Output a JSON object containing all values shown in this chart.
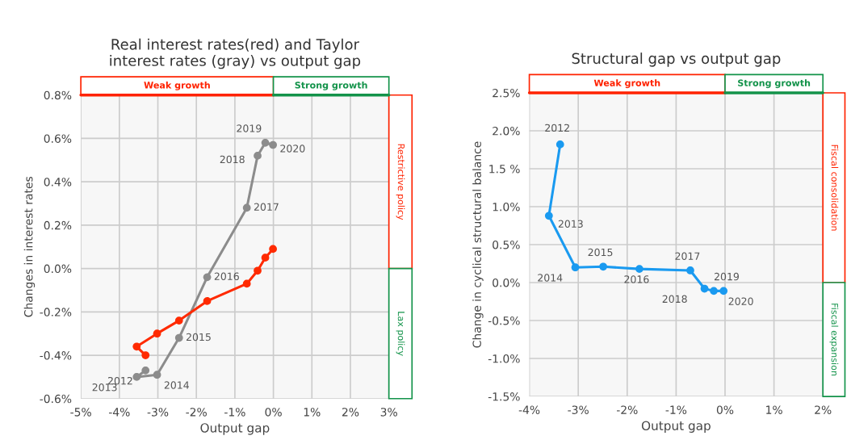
{
  "chart_data": [
    {
      "type": "line",
      "title": "Real interest rates(red) and Taylor interest rates (gray) vs output gap",
      "xlabel": "Output gap",
      "ylabel": "Changes in interest rates",
      "xlim": [
        -5,
        3
      ],
      "xticks": [
        {
          "value": -5,
          "label": "-5%"
        },
        {
          "value": -4,
          "label": "-4%"
        },
        {
          "value": -3,
          "label": "-3%"
        },
        {
          "value": -2,
          "label": "-2%"
        },
        {
          "value": -1,
          "label": "-1%"
        },
        {
          "value": 0,
          "label": "0%"
        },
        {
          "value": 1,
          "label": "1%"
        },
        {
          "value": 2,
          "label": "2%"
        },
        {
          "value": 3,
          "label": "3%"
        }
      ],
      "ylim": [
        -0.6,
        0.8
      ],
      "yticks": [
        {
          "value": -0.6,
          "label": "-0.6%"
        },
        {
          "value": -0.4,
          "label": "-0.4%"
        },
        {
          "value": -0.2,
          "label": "-0.2%"
        },
        {
          "value": 0,
          "label": "0.0%"
        },
        {
          "value": 0.2,
          "label": "0.2%"
        },
        {
          "value": 0.4,
          "label": "0.4%"
        },
        {
          "value": 0.6,
          "label": "0.6%"
        },
        {
          "value": 0.8,
          "label": "0.8%"
        }
      ],
      "grid": true,
      "marker": "circle",
      "series": [
        {
          "color": "#8c8c8c",
          "x": [
            -3.32,
            -3.55,
            -3.02,
            -2.45,
            -1.72,
            -0.69,
            -0.41,
            -0.21,
            -0.01
          ],
          "values": [
            -0.47,
            -0.5,
            -0.49,
            -0.32,
            -0.04,
            0.28,
            0.52,
            0.58,
            0.57
          ]
        },
        {
          "color": "#ff2a00",
          "x": [
            -3.32,
            -3.55,
            -3.02,
            -2.45,
            -1.72,
            -0.69,
            -0.41,
            -0.21,
            -0.01
          ],
          "values": [
            -0.4,
            -0.36,
            -0.3,
            -0.24,
            -0.15,
            -0.07,
            -0.01,
            0.05,
            0.09
          ]
        }
      ],
      "annotations": [
        {
          "text": "2012",
          "x": -3.32,
          "y": -0.47
        },
        {
          "text": "2013",
          "x": -3.55,
          "y": -0.5
        },
        {
          "text": "2014",
          "x": -3.02,
          "y": -0.49
        },
        {
          "text": "2015",
          "x": -2.45,
          "y": -0.32
        },
        {
          "text": "2016",
          "x": -1.72,
          "y": -0.04
        },
        {
          "text": "2017",
          "x": -0.69,
          "y": 0.28
        },
        {
          "text": "2018",
          "x": -0.41,
          "y": 0.52
        },
        {
          "text": "2019",
          "x": -0.21,
          "y": 0.58
        },
        {
          "text": "2020",
          "x": -0.01,
          "y": 0.57
        },
        "Weak growth",
        "Strong growth",
        "Restrictive policy",
        "Lax policy"
      ]
    },
    {
      "type": "line",
      "title": "Structural gap vs output gap",
      "xlabel": "Output gap",
      "ylabel": "Change in cyclical structural balance",
      "xlim": [
        -4,
        2
      ],
      "xticks": [
        {
          "value": -4,
          "label": "-4%"
        },
        {
          "value": -3,
          "label": "-3%"
        },
        {
          "value": -2,
          "label": "-2%"
        },
        {
          "value": -1,
          "label": "-1%"
        },
        {
          "value": 0,
          "label": "0%"
        },
        {
          "value": 1,
          "label": "1%"
        },
        {
          "value": 2,
          "label": "2%"
        }
      ],
      "ylim": [
        -1.5,
        2.5
      ],
      "yticks": [
        {
          "value": -1.5,
          "label": "-1.5%"
        },
        {
          "value": -1.0,
          "label": "-1.0%"
        },
        {
          "value": -0.5,
          "label": "-0.5%"
        },
        {
          "value": 0,
          "label": "0.0%"
        },
        {
          "value": 0.5,
          "label": "0.5%"
        },
        {
          "value": 1.0,
          "label": "1.0%"
        },
        {
          "value": 1.5,
          "label": "1.5 %"
        },
        {
          "value": 2.0,
          "label": "2.0%"
        },
        {
          "value": 2.5,
          "label": "2.5%"
        }
      ],
      "grid": true,
      "marker": "circle",
      "series": [
        {
          "color": "#1a9af0",
          "x": [
            -3.37,
            -3.6,
            -3.06,
            -2.49,
            -1.75,
            -0.71,
            -0.42,
            -0.23,
            -0.03
          ],
          "values": [
            1.82,
            0.88,
            0.2,
            0.21,
            0.18,
            0.16,
            -0.08,
            -0.11,
            -0.11
          ]
        }
      ],
      "annotations": [
        {
          "text": "2012",
          "x": -3.37,
          "y": 1.82
        },
        {
          "text": "2013",
          "x": -3.6,
          "y": 0.88
        },
        {
          "text": "2014",
          "x": -3.06,
          "y": 0.2
        },
        {
          "text": "2015",
          "x": -2.49,
          "y": 0.21
        },
        {
          "text": "2016",
          "x": -1.75,
          "y": 0.18
        },
        {
          "text": "2017",
          "x": -0.71,
          "y": 0.16
        },
        {
          "text": "2018",
          "x": -0.42,
          "y": -0.08
        },
        {
          "text": "2019",
          "x": -0.23,
          "y": -0.11
        },
        {
          "text": "2020",
          "x": -0.03,
          "y": -0.11
        },
        "Weak growth",
        "Strong growth",
        "Fiscal consolidation",
        "Fiscal expansion"
      ]
    }
  ]
}
